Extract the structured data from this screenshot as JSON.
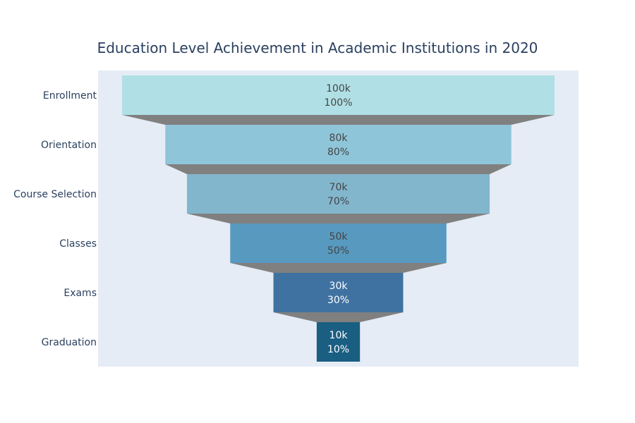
{
  "chart_data": {
    "type": "funnel",
    "title": "Education Level Achievement in Academic Institutions in 2020",
    "categories": [
      "Enrollment",
      "Orientation",
      "Course Selection",
      "Classes",
      "Exams",
      "Graduation"
    ],
    "values": [
      100000,
      80000,
      70000,
      50000,
      30000,
      10000
    ],
    "value_labels": [
      "100k",
      "80k",
      "70k",
      "50k",
      "30k",
      "10k"
    ],
    "percent_labels": [
      "100%",
      "80%",
      "70%",
      "50%",
      "30%",
      "10%"
    ],
    "colors": [
      "#b0e0e6",
      "#8fc5d9",
      "#82b6cd",
      "#5899c0",
      "#3f72a0",
      "#1a5e82"
    ],
    "label_colors": [
      "#444444",
      "#444444",
      "#444444",
      "#444444",
      "#ffffff",
      "#ffffff"
    ],
    "connector_color": "#808080",
    "plot_background": "#e5ecf6"
  }
}
